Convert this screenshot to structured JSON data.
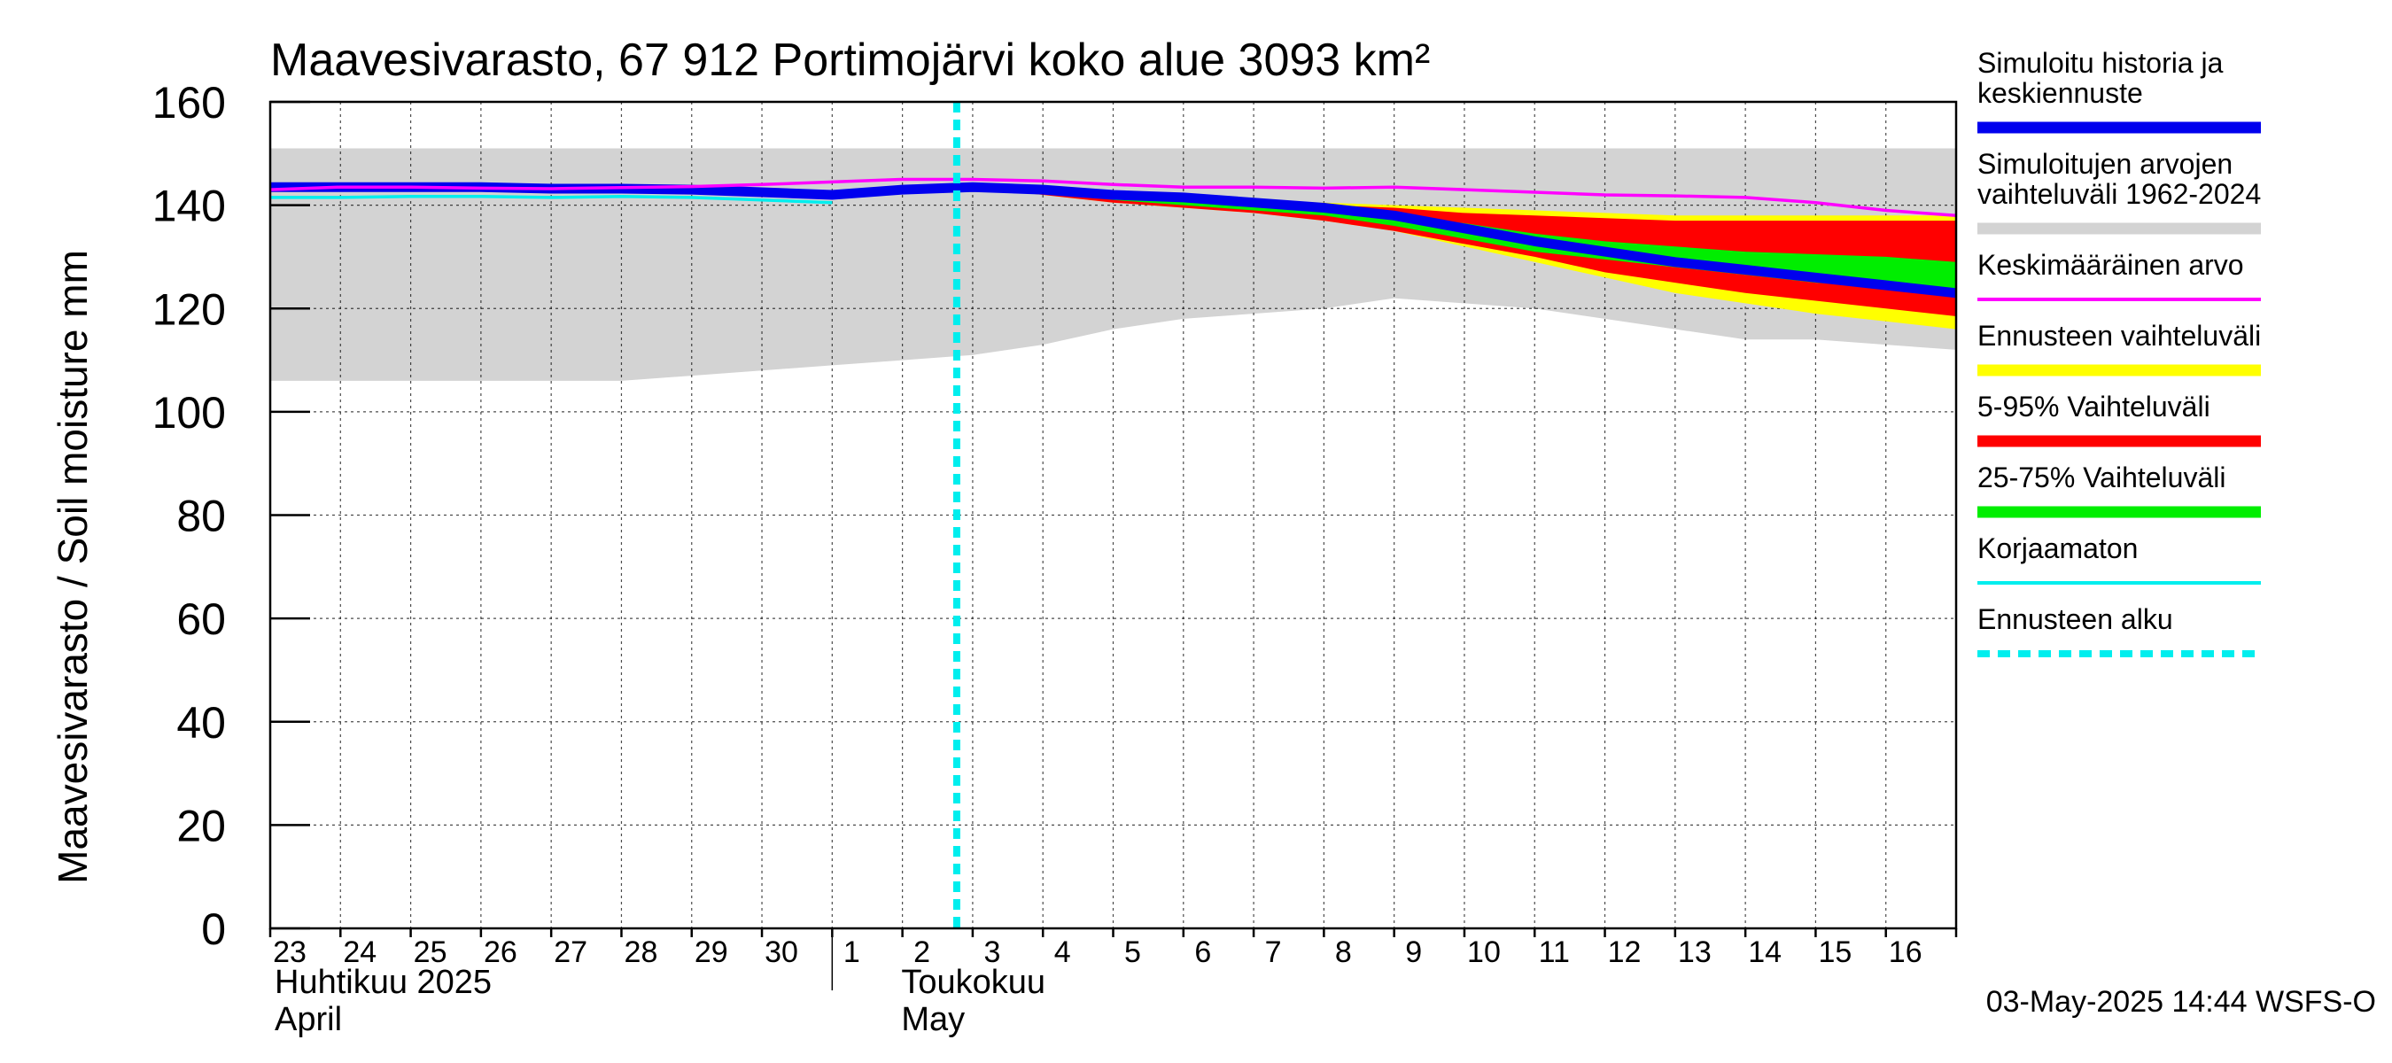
{
  "chart_data": {
    "type": "area",
    "title": "Maavesivarasto, 67 912 Portimojärvi koko alue 3093 km²",
    "ylabel": "Maavesivarasto / Soil moisture   mm",
    "ylim": [
      0,
      160
    ],
    "yticks": [
      0,
      20,
      40,
      60,
      80,
      100,
      120,
      140,
      160
    ],
    "grid": true,
    "x_start_label": "23",
    "days": [
      "23",
      "24",
      "25",
      "26",
      "27",
      "28",
      "29",
      "30",
      "1",
      "2",
      "3",
      "4",
      "5",
      "6",
      "7",
      "8",
      "9",
      "10",
      "11",
      "12",
      "13",
      "14",
      "15",
      "16"
    ],
    "month_labels": [
      {
        "fi": "Huhtikuu  2025",
        "en": "April",
        "start_day_index": 0
      },
      {
        "fi": "Toukokuu",
        "en": "May",
        "start_day_index": 8
      }
    ],
    "forecast_start_day_index": 10,
    "timestamp": "03-May-2025 14:44 WSFS-O",
    "x_index": [
      0,
      1,
      2,
      3,
      4,
      5,
      6,
      7,
      8,
      9,
      10,
      11,
      12,
      13,
      14,
      15,
      16,
      17,
      18,
      19,
      20,
      21,
      22,
      23,
      24
    ],
    "historical_range": {
      "name": "Simuloitujen arvojen vaihteluväli 1962-2024",
      "color": "#d3d3d3",
      "upper": [
        151,
        151,
        151,
        151,
        151,
        151,
        151,
        151,
        151,
        151,
        151,
        151,
        151,
        151,
        151,
        151,
        151,
        151,
        151,
        151,
        151,
        151,
        151,
        151,
        151
      ],
      "lower": [
        106,
        106,
        106,
        106,
        106,
        106,
        107,
        108,
        109,
        110,
        111,
        113,
        116,
        118,
        119,
        120,
        122,
        121,
        120,
        118,
        116,
        114,
        114,
        113,
        112
      ]
    },
    "forecast_range": {
      "name": "Ennusteen vaihteluväli",
      "color": "#ffff00",
      "upper": [
        null,
        null,
        null,
        null,
        null,
        null,
        null,
        null,
        null,
        null,
        143.5,
        143,
        142,
        141.5,
        141,
        140.5,
        140,
        139.5,
        139,
        138.5,
        138,
        138,
        138,
        138,
        138
      ],
      "lower": [
        null,
        null,
        null,
        null,
        null,
        null,
        null,
        null,
        null,
        null,
        143.5,
        142,
        140.5,
        139.5,
        138.5,
        137,
        135,
        132,
        129,
        126,
        123,
        121,
        119,
        117.5,
        116
      ]
    },
    "range_5_95": {
      "name": "5-95% Vaihteluväli",
      "color": "#ff0000",
      "upper": [
        null,
        null,
        null,
        null,
        null,
        null,
        null,
        null,
        null,
        null,
        143.5,
        143,
        142,
        141.5,
        141,
        140,
        139.5,
        138.5,
        138,
        137.5,
        137,
        137,
        137,
        137,
        137
      ],
      "lower": [
        null,
        null,
        null,
        null,
        null,
        null,
        null,
        null,
        null,
        null,
        143.5,
        142,
        140.5,
        139.5,
        138.5,
        137,
        135,
        132.5,
        130,
        127,
        125,
        123,
        121.5,
        120,
        118.5
      ]
    },
    "range_25_75": {
      "name": "25-75% Vaihteluväli",
      "color": "#00ee00",
      "upper": [
        null,
        null,
        null,
        null,
        null,
        null,
        null,
        null,
        null,
        null,
        143.5,
        142.5,
        141.5,
        141,
        140,
        139,
        138,
        136.5,
        134.5,
        133,
        132,
        131,
        130.5,
        130,
        129
      ],
      "lower": [
        null,
        null,
        null,
        null,
        null,
        null,
        null,
        null,
        null,
        null,
        143.5,
        142.5,
        141,
        140,
        139,
        138,
        136,
        133.5,
        131,
        129.5,
        128,
        126.5,
        125,
        124,
        123
      ]
    },
    "series": [
      {
        "name": "Simuloitu historia ja keskiennuste",
        "color": "#0000ee",
        "values": [
          143.5,
          143.5,
          143.5,
          143.5,
          143.2,
          143.2,
          143,
          142.5,
          142,
          143,
          143.5,
          143,
          142,
          141.5,
          140.5,
          139.5,
          138,
          135.5,
          133,
          131,
          129,
          127.5,
          126,
          124.5,
          123
        ]
      },
      {
        "name": "Keskimääräinen arvo",
        "color": "#ff00ff",
        "values": [
          143,
          143.5,
          143.5,
          143.3,
          143.2,
          143.4,
          143.6,
          144,
          144.5,
          145,
          145,
          144.7,
          144,
          143.5,
          143.5,
          143.3,
          143.5,
          143,
          142.5,
          142,
          141.8,
          141.5,
          140.5,
          139,
          138
        ]
      },
      {
        "name": "Korjaamaton",
        "color": "#00eeee",
        "values": [
          141.5,
          141.5,
          141.7,
          141.7,
          141.5,
          141.7,
          141.5,
          141,
          140.5,
          null,
          null,
          null,
          null,
          null,
          null,
          null,
          null,
          null,
          null,
          null,
          null,
          null,
          null,
          null,
          null
        ]
      }
    ],
    "legend": [
      {
        "label_lines": [
          "Simuloitu historia ja",
          "keskiennuste"
        ],
        "color": "#0000ee",
        "style": "solid"
      },
      {
        "label_lines": [
          "Simuloitujen arvojen",
          "vaihteluväli 1962-2024"
        ],
        "color": "#d3d3d3",
        "style": "solid"
      },
      {
        "label_lines": [
          "Keskimääräinen arvo"
        ],
        "color": "#ff00ff",
        "style": "thin"
      },
      {
        "label_lines": [
          "Ennusteen vaihteluväli"
        ],
        "color": "#ffff00",
        "style": "solid"
      },
      {
        "label_lines": [
          "5-95% Vaihteluväli"
        ],
        "color": "#ff0000",
        "style": "solid"
      },
      {
        "label_lines": [
          "25-75% Vaihteluväli"
        ],
        "color": "#00ee00",
        "style": "solid"
      },
      {
        "label_lines": [
          "Korjaamaton"
        ],
        "color": "#00eeee",
        "style": "thin"
      },
      {
        "label_lines": [
          "Ennusteen alku"
        ],
        "color": "#00eeee",
        "style": "dashed"
      }
    ]
  }
}
